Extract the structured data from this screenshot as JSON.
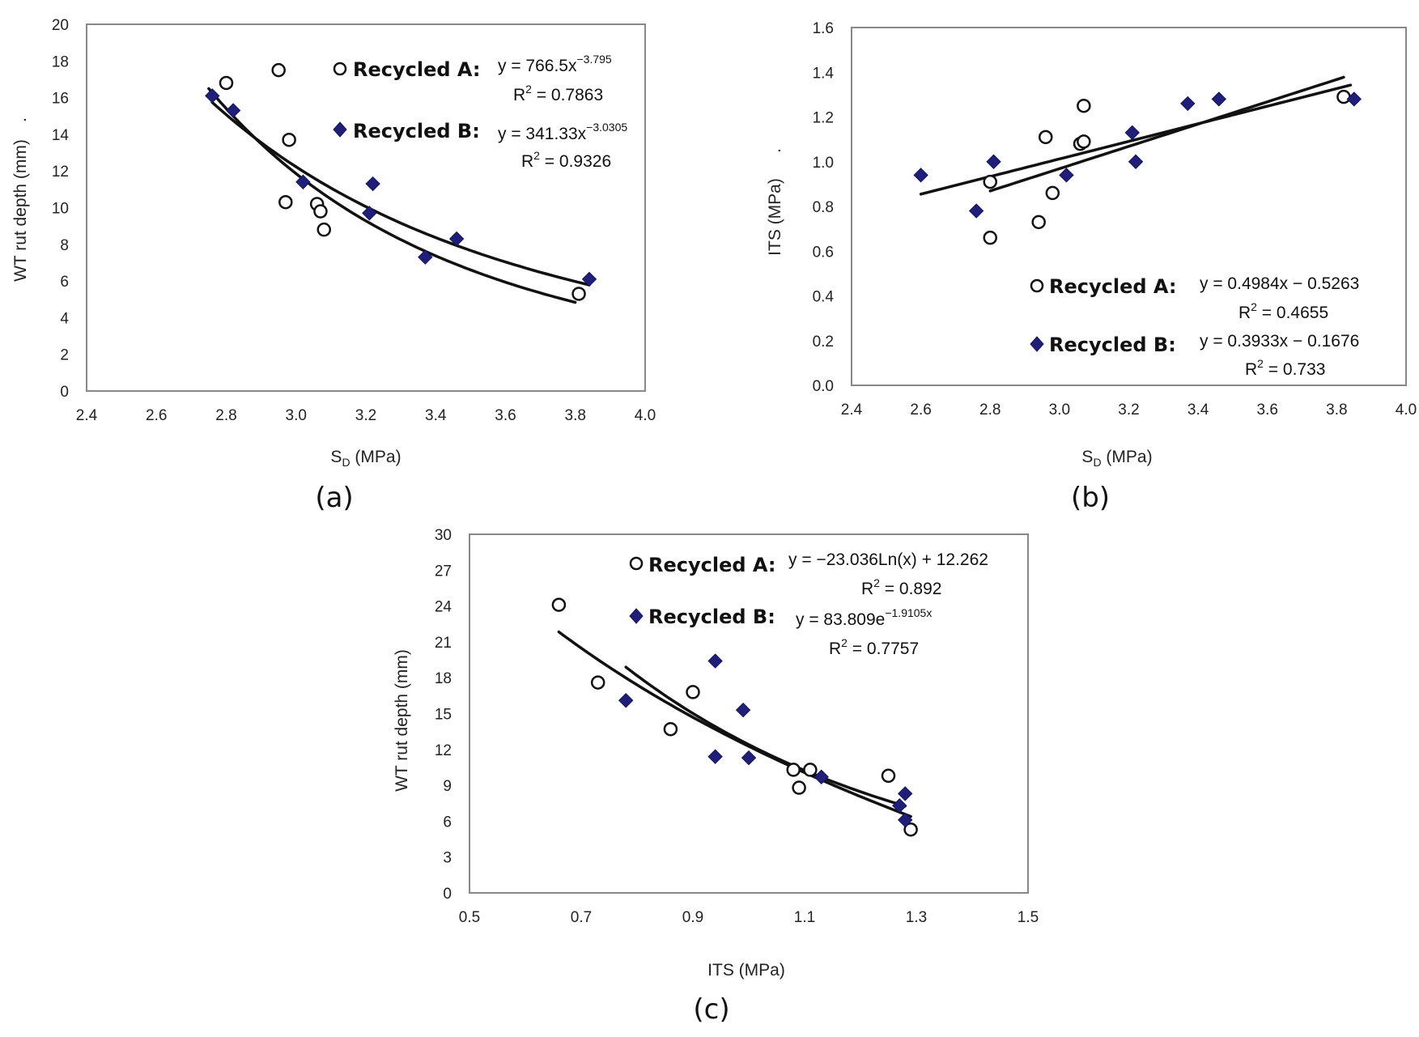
{
  "chart_data": [
    {
      "id": "a",
      "type": "scatter",
      "panel_label": "(a)",
      "xlabel": "S",
      "xlabel_sub": "D",
      "xlabel_suffix": " (MPa)",
      "ylabel": "WT rut depth (mm)",
      "ylabel_trail": ".",
      "xlim": [
        2.4,
        4.0
      ],
      "ylim": [
        0,
        20
      ],
      "xticks": [
        "2.4",
        "2.6",
        "2.8",
        "3.0",
        "3.2",
        "3.4",
        "3.6",
        "3.8",
        "4.0"
      ],
      "yticks": [
        "0",
        "2",
        "4",
        "6",
        "8",
        "10",
        "12",
        "14",
        "16",
        "18",
        "20"
      ],
      "series": [
        {
          "name": "Recycled A:",
          "marker": "circle",
          "eq_main": "y = 766.5x",
          "eq_exp": "−3.795",
          "r2": "0.7863",
          "fit": {
            "kind": "power",
            "a": 766.5,
            "b": -3.795,
            "x0": 2.75,
            "x1": 3.8
          },
          "x": [
            2.8,
            2.95,
            2.98,
            2.97,
            3.06,
            3.07,
            3.08,
            3.81
          ],
          "y": [
            16.8,
            17.5,
            13.7,
            10.3,
            10.2,
            9.8,
            8.8,
            5.3
          ]
        },
        {
          "name": "Recycled B:",
          "marker": "diamond",
          "eq_main": "y = 341.33x",
          "eq_exp": "−3.0305",
          "r2": "0.9326",
          "fit": {
            "kind": "power",
            "a": 341.33,
            "b": -3.0305,
            "x0": 2.76,
            "x1": 3.84
          },
          "x": [
            2.76,
            2.82,
            3.02,
            3.21,
            3.22,
            3.37,
            3.46,
            3.84
          ],
          "y": [
            16.1,
            15.3,
            11.4,
            9.7,
            11.3,
            7.3,
            8.3,
            6.1
          ]
        }
      ]
    },
    {
      "id": "b",
      "type": "scatter",
      "panel_label": "(b)",
      "xlabel": "S",
      "xlabel_sub": "D",
      "xlabel_suffix": " (MPa)",
      "ylabel": "ITS (MPa)",
      "ylabel_trail": ".",
      "xlim": [
        2.4,
        4.0
      ],
      "ylim": [
        0,
        1.6
      ],
      "xticks": [
        "2.4",
        "2.6",
        "2.8",
        "3.0",
        "3.2",
        "3.4",
        "3.6",
        "3.8",
        "4.0"
      ],
      "yticks": [
        "0.0",
        "0.2",
        "0.4",
        "0.6",
        "0.8",
        "1.0",
        "1.2",
        "1.4",
        "1.6"
      ],
      "series": [
        {
          "name": "Recycled A:",
          "marker": "circle",
          "eq_main": "y = 0.4984x − 0.5263",
          "eq_exp": "",
          "r2": "0.4655",
          "fit": {
            "kind": "linear",
            "a": 0.4984,
            "b": -0.5263,
            "x0": 2.8,
            "x1": 3.82
          },
          "x": [
            2.8,
            2.8,
            2.94,
            2.96,
            2.98,
            3.06,
            3.07,
            3.07,
            3.82
          ],
          "y": [
            0.91,
            0.66,
            0.73,
            1.11,
            0.86,
            1.08,
            1.09,
            1.25,
            1.29
          ]
        },
        {
          "name": "Recycled B:",
          "marker": "diamond",
          "eq_main": "y = 0.3933x − 0.1676",
          "eq_exp": "",
          "r2": "0.733",
          "fit": {
            "kind": "linear",
            "a": 0.3933,
            "b": -0.1676,
            "x0": 2.6,
            "x1": 3.84
          },
          "x": [
            2.6,
            2.76,
            2.81,
            3.02,
            3.21,
            3.22,
            3.37,
            3.46,
            3.85
          ],
          "y": [
            0.94,
            0.78,
            1.0,
            0.94,
            1.13,
            1.0,
            1.26,
            1.28,
            1.28
          ]
        }
      ]
    },
    {
      "id": "c",
      "type": "scatter",
      "panel_label": "(c)",
      "xlabel": "ITS (MPa)",
      "xlabel_sub": "",
      "xlabel_suffix": "",
      "ylabel": "WT rut depth (mm)",
      "ylabel_trail": "",
      "xlim": [
        0.5,
        1.5
      ],
      "ylim": [
        0,
        30
      ],
      "xticks": [
        "0.5",
        "0.7",
        "0.9",
        "1.1",
        "1.3",
        "1.5"
      ],
      "yticks": [
        "0",
        "3",
        "6",
        "9",
        "12",
        "15",
        "18",
        "21",
        "24",
        "27",
        "30"
      ],
      "series": [
        {
          "name": "Recycled A:",
          "marker": "circle",
          "eq_main": "y = −23.036Ln(x) + 12.262",
          "eq_exp": "",
          "r2": "0.892",
          "fit": {
            "kind": "log",
            "a": -23.036,
            "b": 12.262,
            "x0": 0.66,
            "x1": 1.29
          },
          "x": [
            0.66,
            0.73,
            0.86,
            0.9,
            1.08,
            1.09,
            1.11,
            1.25,
            1.29
          ],
          "y": [
            24.1,
            17.6,
            13.7,
            16.8,
            10.3,
            8.8,
            10.3,
            9.8,
            5.3
          ]
        },
        {
          "name": "Recycled B:",
          "marker": "diamond",
          "eq_main": "y = 83.809e",
          "eq_exp": "−1.9105x",
          "r2": "0.7757",
          "fit": {
            "kind": "exp",
            "a": 83.809,
            "b": -1.9105,
            "x0": 0.78,
            "x1": 1.28
          },
          "x": [
            0.78,
            0.94,
            0.94,
            0.99,
            1.0,
            1.13,
            1.27,
            1.28,
            1.28
          ],
          "y": [
            16.1,
            19.4,
            11.4,
            15.3,
            11.3,
            9.7,
            7.3,
            8.3,
            6.1
          ]
        }
      ]
    }
  ]
}
